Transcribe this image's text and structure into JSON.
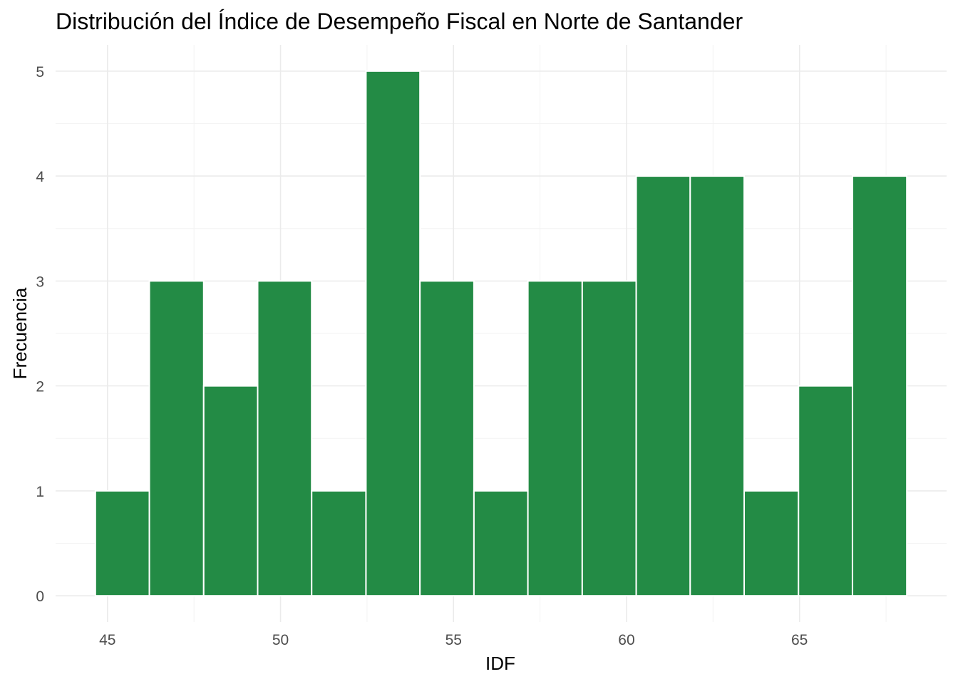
{
  "chart_data": {
    "type": "bar",
    "title": "Distribución del Índice de Desempeño Fiscal en Norte de Santander",
    "xlabel": "IDF",
    "ylabel": "Frecuencia",
    "bin_width": 1.5625,
    "bins": [
      {
        "x_start": 44.65,
        "x_end": 46.21,
        "count": 1
      },
      {
        "x_start": 46.21,
        "x_end": 47.78,
        "count": 3
      },
      {
        "x_start": 47.78,
        "x_end": 49.34,
        "count": 2
      },
      {
        "x_start": 49.34,
        "x_end": 50.9,
        "count": 3
      },
      {
        "x_start": 50.9,
        "x_end": 52.47,
        "count": 1
      },
      {
        "x_start": 52.47,
        "x_end": 54.03,
        "count": 5
      },
      {
        "x_start": 54.03,
        "x_end": 55.59,
        "count": 3
      },
      {
        "x_start": 55.59,
        "x_end": 57.15,
        "count": 1
      },
      {
        "x_start": 57.15,
        "x_end": 58.72,
        "count": 3
      },
      {
        "x_start": 58.72,
        "x_end": 60.28,
        "count": 3
      },
      {
        "x_start": 60.28,
        "x_end": 61.84,
        "count": 4
      },
      {
        "x_start": 61.84,
        "x_end": 63.4,
        "count": 4
      },
      {
        "x_start": 63.4,
        "x_end": 64.97,
        "count": 1
      },
      {
        "x_start": 64.97,
        "x_end": 66.53,
        "count": 2
      },
      {
        "x_start": 66.53,
        "x_end": 68.1,
        "count": 4
      }
    ],
    "xlim": [
      43.5,
      69.25
    ],
    "ylim": [
      -0.25,
      5.25
    ],
    "x_ticks": [
      45,
      50,
      55,
      60,
      65
    ],
    "x_minor_ticks": [
      47.5,
      52.5,
      57.5,
      62.5,
      67.5
    ],
    "y_ticks": [
      0,
      1,
      2,
      3,
      4,
      5
    ],
    "y_minor_ticks": [
      0.5,
      1.5,
      2.5,
      3.5,
      4.5
    ],
    "x_tick_labels": [
      "45",
      "50",
      "55",
      "60",
      "65"
    ],
    "y_tick_labels": [
      "0",
      "1",
      "2",
      "3",
      "4",
      "5"
    ],
    "bar_color": "#238b45",
    "grid": true,
    "legend": "none"
  }
}
